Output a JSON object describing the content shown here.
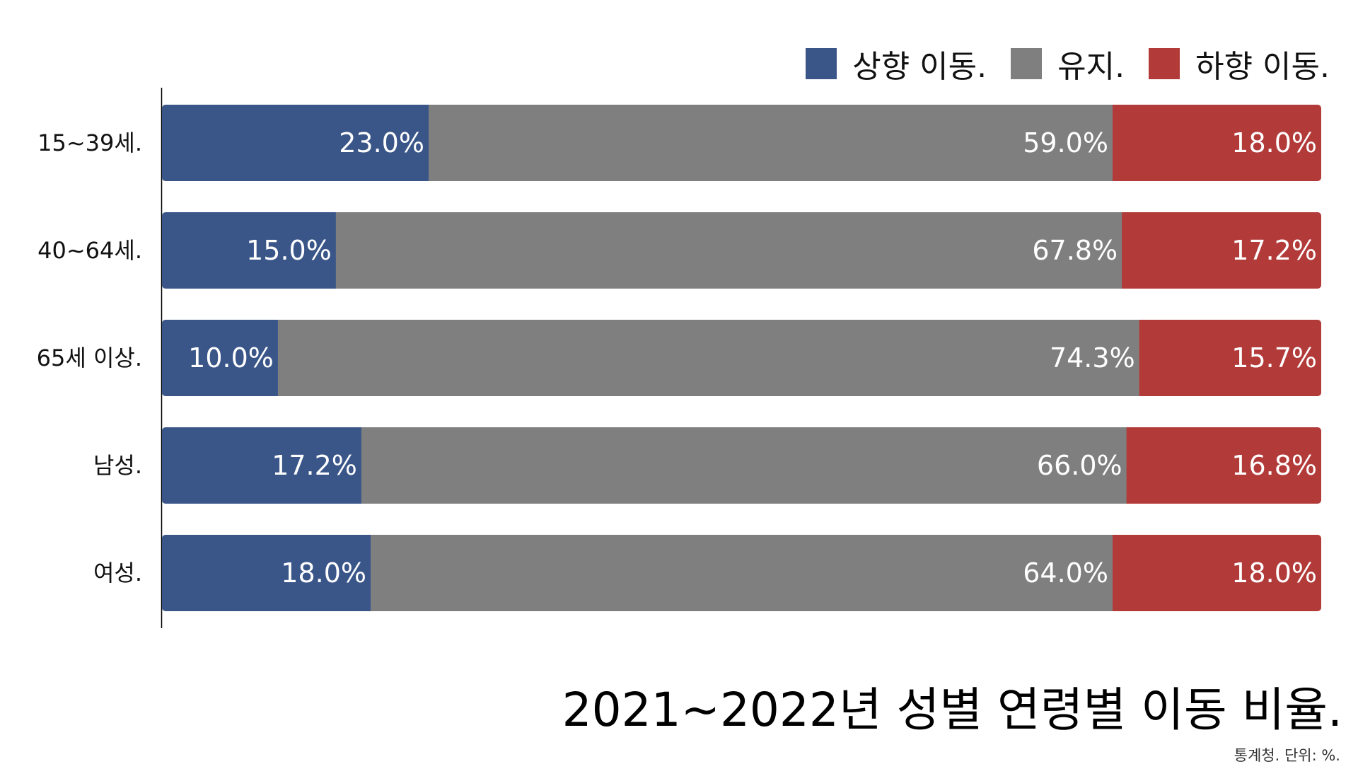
{
  "chart_data": {
    "type": "bar",
    "orientation": "horizontal",
    "stacked": true,
    "title": "2021~2022년 성별 연령별 이동 비율.",
    "source_note": "통계청. 단위: %.",
    "categories": [
      "15~39세.",
      "40~64세.",
      "65세 이상.",
      "남성.",
      "여성."
    ],
    "series": [
      {
        "name": "상향 이동.",
        "color": "#3a5689",
        "values": [
          23.0,
          15.0,
          10.0,
          17.2,
          18.0
        ]
      },
      {
        "name": "유지.",
        "color": "#7f7f7f",
        "values": [
          59.0,
          67.8,
          74.3,
          66.0,
          64.0
        ]
      },
      {
        "name": "하향 이동.",
        "color": "#b23b3a",
        "values": [
          18.0,
          17.2,
          15.7,
          16.8,
          18.0
        ]
      }
    ],
    "data_labels": [
      [
        "23.0%",
        "59.0%",
        "18.0%"
      ],
      [
        "15.0%",
        "67.8%",
        "17.2%"
      ],
      [
        "10.0%",
        "74.3%",
        "15.7%"
      ],
      [
        "17.2%",
        "66.0%",
        "16.8%"
      ],
      [
        "18.0%",
        "64.0%",
        "18.0%"
      ]
    ],
    "xlim": [
      0,
      100
    ],
    "legend_position": "top-right",
    "grid": false
  }
}
